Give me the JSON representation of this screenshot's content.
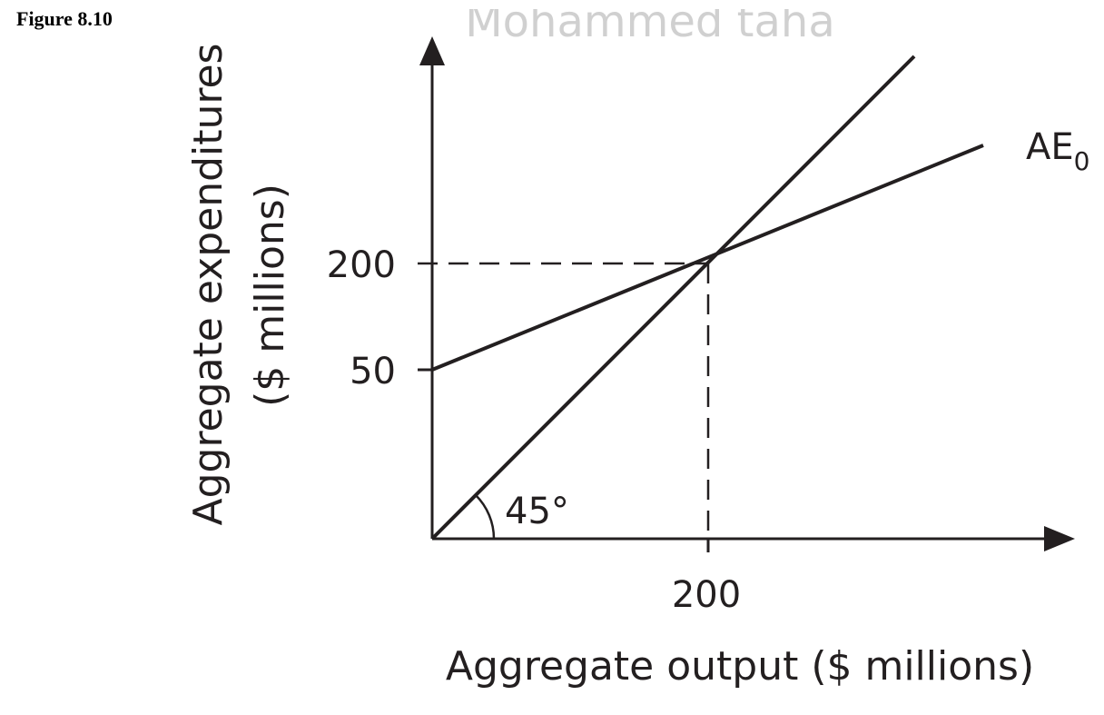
{
  "figure_label": "Figure 8.10",
  "watermark": "Mohammed taha",
  "y_axis": {
    "title": "Aggregate expenditures",
    "subtitle": "($ millions)",
    "labels": [
      "200",
      "50"
    ]
  },
  "x_axis": {
    "title": "Aggregate output ($ millions)",
    "labels": [
      "200"
    ]
  },
  "ae_line": {
    "label": "AE",
    "subscript": "0"
  },
  "angle_label": "45°"
}
